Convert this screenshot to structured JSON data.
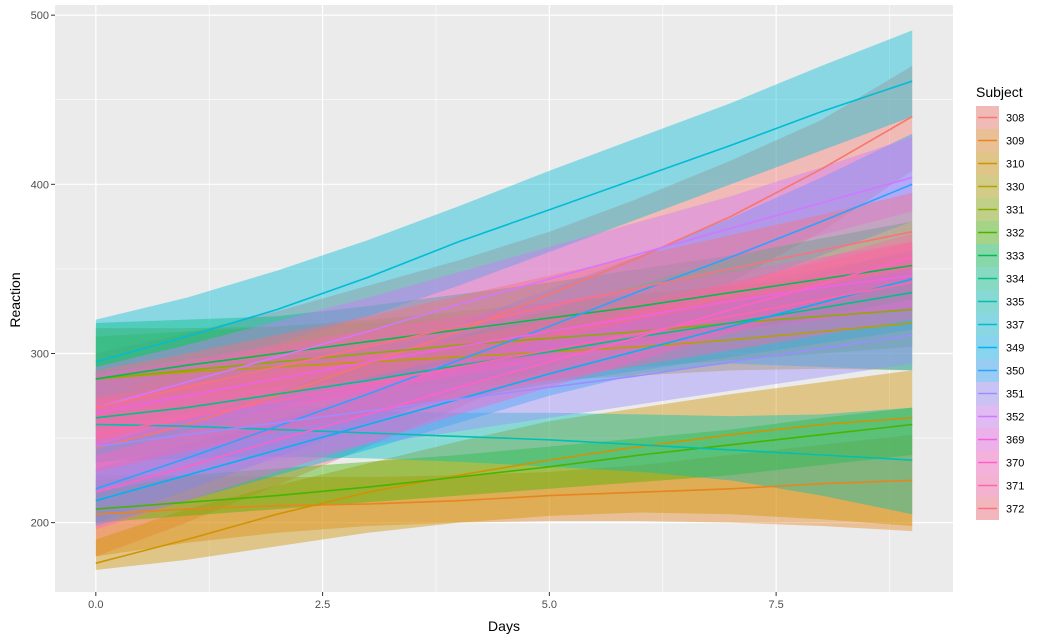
{
  "chart_data": {
    "type": "line",
    "xlabel": "Days",
    "ylabel": "Reaction",
    "xlim": [
      -0.45,
      9.45
    ],
    "ylim": [
      159,
      506
    ],
    "x_ticks": [
      {
        "value": 0,
        "label": "0.0"
      },
      {
        "value": 2.5,
        "label": "2.5"
      },
      {
        "value": 5,
        "label": "5.0"
      },
      {
        "value": 7.5,
        "label": "7.5"
      }
    ],
    "y_ticks": [
      {
        "value": 200,
        "label": "200"
      },
      {
        "value": 300,
        "label": "300"
      },
      {
        "value": 400,
        "label": "400"
      },
      {
        "value": 500,
        "label": "500"
      }
    ],
    "grid": true,
    "legend": {
      "title": "Subject",
      "position": "right"
    },
    "x": [
      0,
      1,
      2,
      3,
      4,
      5,
      6,
      7,
      8,
      9
    ],
    "series": [
      {
        "name": "308",
        "color": "#F8766D",
        "values": [
          244,
          258,
          275,
          294,
          313,
          335,
          357,
          381,
          409,
          440
        ],
        "lower": [
          180,
          200,
          222,
          245,
          268,
          292,
          316,
          342,
          372,
          408
        ],
        "upper": [
          300,
          312,
          325,
          340,
          355,
          372,
          392,
          414,
          438,
          470
        ]
      },
      {
        "name": "309",
        "color": "#E7851E",
        "values": [
          205,
          208,
          210,
          211,
          213,
          216,
          218,
          220,
          223,
          225
        ],
        "lower": [
          180,
          188,
          194,
          198,
          200,
          201,
          201,
          200,
          198,
          195
        ],
        "upper": [
          228,
          228,
          227,
          227,
          228,
          230,
          234,
          240,
          246,
          252
        ]
      },
      {
        "name": "310",
        "color": "#D09400",
        "values": [
          176,
          190,
          205,
          218,
          228,
          237,
          245,
          252,
          258,
          262
        ],
        "lower": [
          172,
          178,
          186,
          194,
          200,
          204,
          206,
          205,
          202,
          198
        ],
        "upper": [
          190,
          208,
          222,
          235,
          248,
          260,
          268,
          276,
          283,
          290
        ]
      },
      {
        "name": "330",
        "color": "#B2A100",
        "values": [
          285,
          289,
          292,
          295,
          298,
          301,
          304,
          308,
          313,
          318
        ],
        "lower": [
          260,
          266,
          270,
          275,
          280,
          284,
          287,
          290,
          291,
          290
        ],
        "upper": [
          315,
          315,
          316,
          318,
          321,
          324,
          328,
          333,
          340,
          348
        ]
      },
      {
        "name": "331",
        "color": "#89AC00",
        "values": [
          285,
          290,
          295,
          300,
          305,
          309,
          313,
          318,
          322,
          326
        ],
        "lower": [
          258,
          266,
          272,
          278,
          283,
          288,
          292,
          296,
          300,
          304
        ],
        "upper": [
          310,
          313,
          316,
          320,
          325,
          330,
          335,
          340,
          345,
          350
        ]
      },
      {
        "name": "332",
        "color": "#45B500",
        "values": [
          208,
          212,
          216,
          221,
          227,
          233,
          240,
          246,
          252,
          258
        ],
        "lower": [
          200,
          204,
          208,
          212,
          216,
          220,
          224,
          228,
          234,
          240
        ],
        "upper": [
          225,
          228,
          232,
          236,
          240,
          245,
          250,
          255,
          262,
          268
        ]
      },
      {
        "name": "333",
        "color": "#00BC51",
        "values": [
          285,
          293,
          300,
          307,
          314,
          321,
          328,
          336,
          344,
          352
        ],
        "lower": [
          255,
          265,
          275,
          284,
          292,
          300,
          307,
          314,
          320,
          326
        ],
        "upper": [
          318,
          320,
          322,
          328,
          335,
          342,
          350,
          358,
          368,
          378
        ]
      },
      {
        "name": "334",
        "color": "#00C087",
        "values": [
          262,
          268,
          276,
          284,
          293,
          301,
          310,
          318,
          327,
          336
        ],
        "lower": [
          235,
          244,
          254,
          264,
          273,
          282,
          290,
          298,
          306,
          314
        ],
        "upper": [
          290,
          294,
          298,
          304,
          312,
          320,
          330,
          340,
          350,
          360
        ]
      },
      {
        "name": "335",
        "color": "#00C0B2",
        "values": [
          258,
          257,
          255,
          253,
          251,
          249,
          246,
          243,
          240,
          237
        ],
        "lower": [
          236,
          238,
          239,
          238,
          236,
          233,
          230,
          225,
          216,
          205
        ],
        "upper": [
          282,
          276,
          270,
          266,
          265,
          265,
          264,
          263,
          264,
          268
        ]
      },
      {
        "name": "337",
        "color": "#00BCD6",
        "values": [
          295,
          310,
          326,
          345,
          366,
          385,
          404,
          423,
          443,
          461
        ],
        "lower": [
          275,
          290,
          306,
          322,
          340,
          360,
          380,
          400,
          420,
          440
        ],
        "upper": [
          320,
          333,
          349,
          367,
          387,
          408,
          428,
          448,
          470,
          491
        ]
      },
      {
        "name": "349",
        "color": "#00B3F2",
        "values": [
          213,
          228,
          243,
          258,
          273,
          288,
          302,
          316,
          330,
          344
        ],
        "lower": [
          198,
          213,
          228,
          243,
          259,
          275,
          288,
          294,
          292,
          290
        ],
        "upper": [
          232,
          246,
          261,
          276,
          292,
          306,
          320,
          334,
          348,
          362
        ]
      },
      {
        "name": "350",
        "color": "#29A3FF",
        "values": [
          220,
          238,
          257,
          276,
          296,
          316,
          337,
          357,
          378,
          400
        ],
        "lower": [
          200,
          219,
          239,
          258,
          278,
          298,
          318,
          338,
          358,
          378
        ],
        "upper": [
          245,
          262,
          280,
          298,
          318,
          338,
          358,
          380,
          404,
          430
        ]
      },
      {
        "name": "351",
        "color": "#9C8DFF",
        "values": [
          245,
          252,
          259,
          266,
          273,
          280,
          287,
          295,
          303,
          311
        ],
        "lower": [
          218,
          228,
          237,
          246,
          254,
          262,
          270,
          278,
          286,
          294
        ],
        "upper": [
          272,
          276,
          280,
          285,
          291,
          298,
          305,
          313,
          322,
          332
        ]
      },
      {
        "name": "352",
        "color": "#D277FF",
        "values": [
          268,
          283,
          298,
          313,
          329,
          344,
          359,
          374,
          389,
          404
        ],
        "lower": [
          245,
          262,
          278,
          294,
          310,
          326,
          341,
          356,
          370,
          384
        ],
        "upper": [
          292,
          305,
          319,
          333,
          348,
          363,
          378,
          393,
          410,
          428
        ]
      },
      {
        "name": "369",
        "color": "#F161E8",
        "values": [
          265,
          275,
          285,
          295,
          304,
          313,
          322,
          331,
          339,
          346
        ],
        "lower": [
          245,
          256,
          267,
          277,
          287,
          296,
          305,
          313,
          320,
          326
        ],
        "upper": [
          288,
          296,
          305,
          314,
          322,
          330,
          339,
          348,
          357,
          366
        ]
      },
      {
        "name": "370",
        "color": "#FF61C7",
        "values": [
          218,
          233,
          249,
          264,
          280,
          295,
          310,
          326,
          341,
          357
        ],
        "lower": [
          196,
          213,
          230,
          247,
          264,
          280,
          296,
          312,
          328,
          344
        ],
        "upper": [
          240,
          254,
          268,
          282,
          296,
          311,
          326,
          341,
          356,
          371
        ]
      },
      {
        "name": "371",
        "color": "#FF65AC",
        "values": [
          252,
          262,
          272,
          282,
          292,
          302,
          312,
          322,
          332,
          342
        ],
        "lower": [
          230,
          242,
          253,
          264,
          274,
          284,
          293,
          302,
          311,
          320
        ],
        "upper": [
          274,
          282,
          290,
          299,
          309,
          320,
          331,
          342,
          354,
          366
        ]
      },
      {
        "name": "372",
        "color": "#FC717F",
        "values": [
          268,
          280,
          292,
          304,
          316,
          328,
          339,
          350,
          361,
          372
        ],
        "lower": [
          248,
          261,
          274,
          286,
          298,
          309,
          320,
          330,
          340,
          350
        ],
        "upper": [
          290,
          300,
          311,
          322,
          334,
          346,
          358,
          370,
          382,
          395
        ]
      }
    ]
  }
}
